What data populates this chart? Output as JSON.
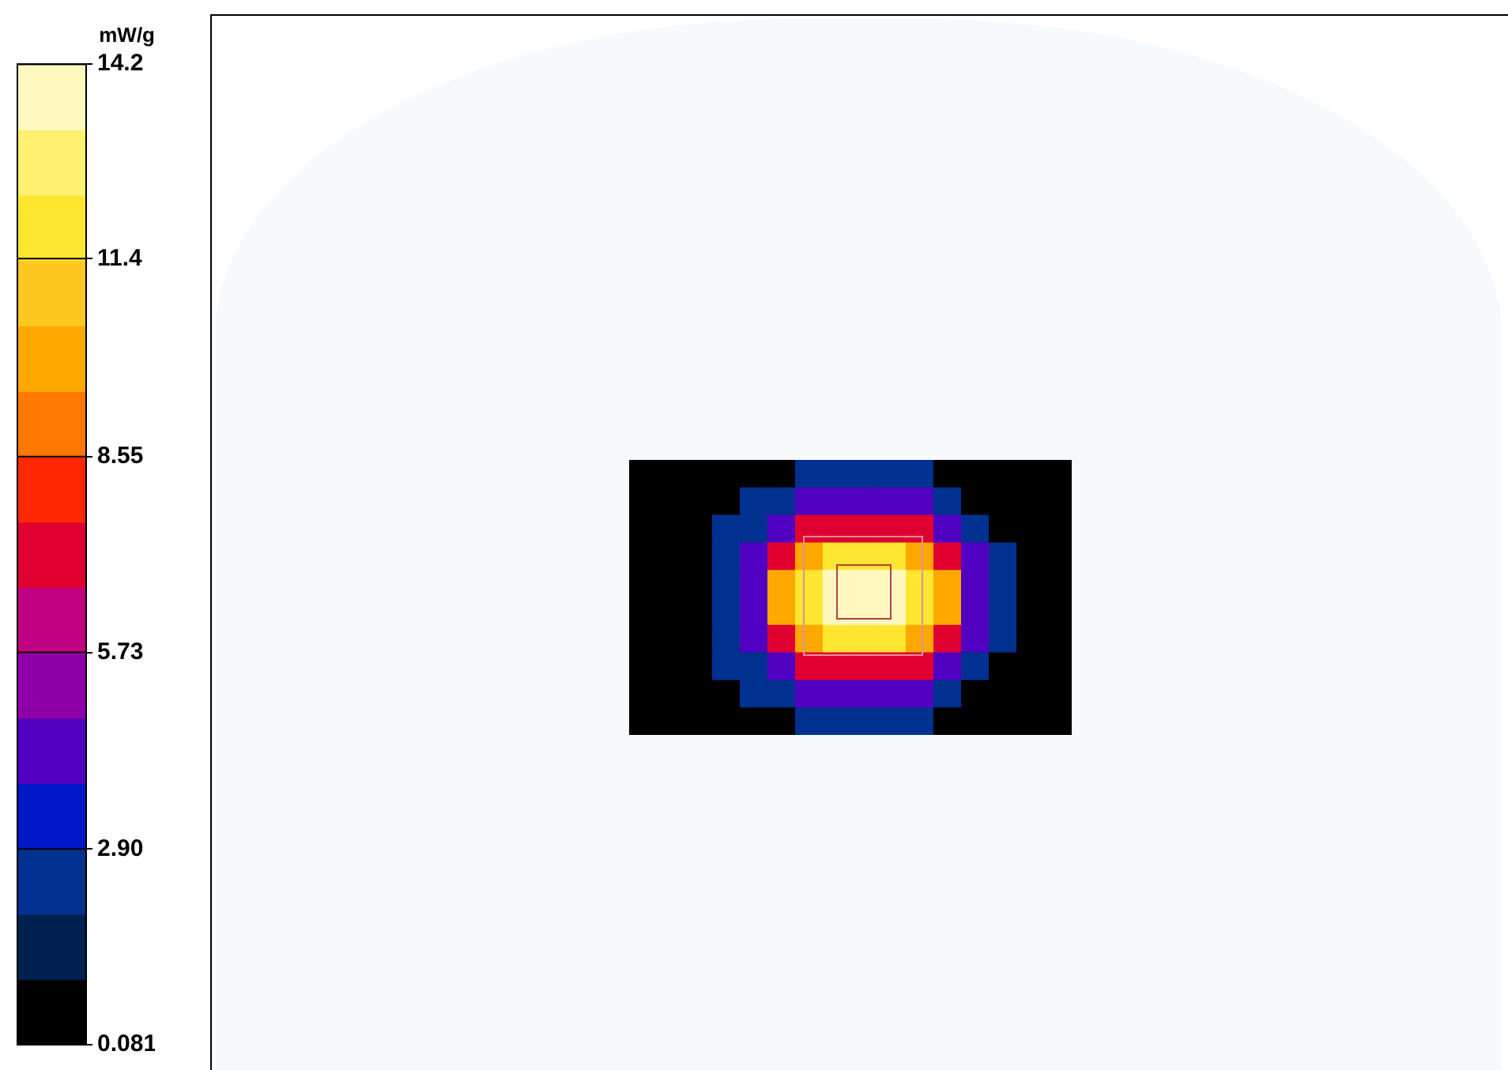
{
  "chart_data": {
    "type": "heatmap",
    "clabel": "mW/g",
    "clim": [
      0.081,
      14.2
    ],
    "cticks": [
      {
        "value": 0.081,
        "label": "0.081"
      },
      {
        "value": 2.9,
        "label": "2.90"
      },
      5.73,
      8.55,
      11.4,
      14.2
    ],
    "categories": [
      null,
      null,
      null,
      null,
      null,
      null,
      null,
      null,
      null,
      null,
      null,
      null,
      null,
      null,
      null,
      null
    ],
    "y_categories": [
      null,
      null,
      null,
      null,
      null,
      null,
      null,
      null,
      null,
      null
    ],
    "cells": [
      [
        0.5,
        0.5,
        0.5,
        0.5,
        0.5,
        0.5,
        2.0,
        2.0,
        2.0,
        2.0,
        2.0,
        0.5,
        0.5,
        0.5,
        0.5,
        0.5
      ],
      [
        0.5,
        0.5,
        0.5,
        0.5,
        2.0,
        2.0,
        4.3,
        4.3,
        4.3,
        4.3,
        4.3,
        2.0,
        0.5,
        0.5,
        0.5,
        0.5
      ],
      [
        0.5,
        0.5,
        0.5,
        2.0,
        2.0,
        4.3,
        7.1,
        7.1,
        7.1,
        7.1,
        7.1,
        4.3,
        2.0,
        0.5,
        0.5,
        0.5
      ],
      [
        0.5,
        0.5,
        0.5,
        2.0,
        4.3,
        7.1,
        10,
        12.3,
        12.3,
        12.3,
        10,
        7.1,
        4.3,
        2.0,
        0.5,
        0.5
      ],
      [
        0.5,
        0.5,
        0.5,
        2.0,
        4.3,
        10,
        12.3,
        13.8,
        13.8,
        13.8,
        12.3,
        10,
        4.3,
        2.0,
        0.5,
        0.5
      ],
      [
        0.5,
        0.5,
        0.5,
        2.0,
        4.3,
        10,
        12.3,
        13.8,
        13.8,
        13.8,
        12.3,
        10,
        4.3,
        2.0,
        0.5,
        0.5
      ],
      [
        0.5,
        0.5,
        0.5,
        2.0,
        4.3,
        7.1,
        10,
        12.3,
        12.3,
        12.3,
        10,
        7.1,
        4.3,
        2.0,
        0.5,
        0.5
      ],
      [
        0.5,
        0.5,
        0.5,
        2.0,
        2.0,
        4.3,
        7.1,
        7.1,
        7.1,
        7.1,
        7.1,
        4.3,
        2.0,
        0.5,
        0.5,
        0.5
      ],
      [
        0.5,
        0.5,
        0.5,
        0.5,
        2.0,
        2.0,
        4.3,
        4.3,
        4.3,
        4.3,
        4.3,
        2.0,
        0.5,
        0.5,
        0.5,
        0.5
      ],
      [
        0.5,
        0.5,
        0.5,
        0.5,
        0.5,
        0.5,
        2.0,
        2.0,
        2.0,
        2.0,
        2.0,
        0.5,
        0.5,
        0.5,
        0.5,
        0.5
      ]
    ]
  }
}
